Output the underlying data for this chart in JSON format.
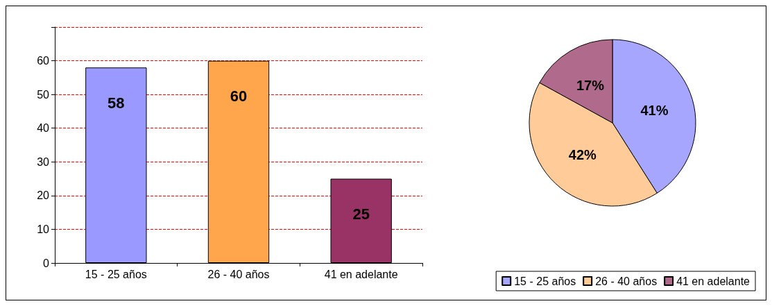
{
  "chart_data": [
    {
      "type": "bar",
      "categories": [
        "15 - 25 años",
        "26 - 40 años",
        "41 en adelante"
      ],
      "values": [
        58,
        60,
        25
      ],
      "colors": [
        "#9999ff",
        "#ffa64d",
        "#993366"
      ],
      "ylim": [
        0,
        70
      ],
      "yticks": [
        0,
        10,
        20,
        30,
        40,
        50,
        60,
        {
          "value": 70,
          "label": null
        }
      ],
      "grid": "y",
      "data_labels": true
    },
    {
      "type": "pie",
      "categories": [
        "15 - 25 años",
        "26 - 40 años",
        "41 en adelante"
      ],
      "values": [
        41,
        42,
        17
      ],
      "colors": [
        "#a6a6ff",
        "#ffcc99",
        "#b06a8c"
      ],
      "value_labels": [
        "41%",
        "42%",
        "17%"
      ],
      "legend": "bottom right"
    }
  ]
}
